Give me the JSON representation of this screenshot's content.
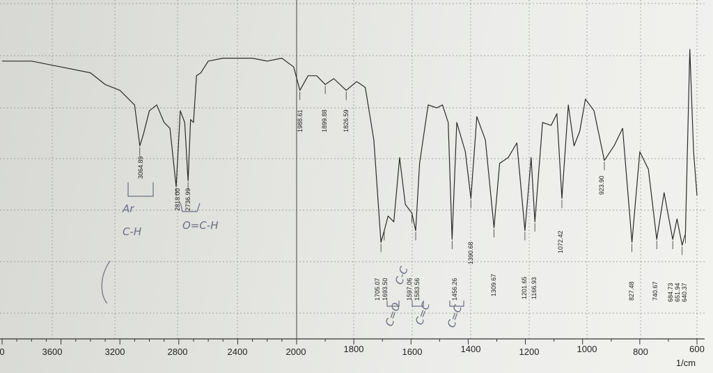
{
  "chart_data": {
    "type": "line",
    "title": "",
    "xlabel": "1/cm",
    "ylabel": "",
    "xlim": [
      4000,
      600
    ],
    "x_ticks": [
      "3600",
      "3200",
      "2800",
      "2400",
      "2000",
      "1600",
      "1200",
      "800",
      "600",
      "1800",
      "1400",
      "1000",
      "0"
    ],
    "peak_labels": [
      "3064.89",
      "2818.00",
      "2736.99",
      "1988.61",
      "1899.88",
      "1826.59",
      "1705.07",
      "1693.50",
      "1597.06",
      "1583.56",
      "1456.26",
      "1390.68",
      "1309.67",
      "1201.65",
      "1166.93",
      "1072.42",
      "923.90",
      "827.48",
      "740.67",
      "684.73",
      "651.94",
      "640.37"
    ],
    "annotations": [
      "Ar",
      "C-H",
      "O=C-H",
      "C=O",
      "C=C",
      "C=C",
      "C-C"
    ],
    "series": [
      {
        "x": [
          4000,
          3800,
          3600,
          3400,
          3300,
          3200,
          3100,
          3064.89,
          3040,
          3000,
          2950,
          2900,
          2860,
          2818,
          2790,
          2760,
          2736.99,
          2720,
          2700,
          2680,
          2650,
          2600,
          2500,
          2400,
          2300,
          2200,
          2100,
          2020,
          1988.61,
          1960,
          1930,
          1899.88,
          1870,
          1826.59,
          1790,
          1760,
          1730,
          1705.07,
          1693.5,
          1680,
          1660,
          1640,
          1620,
          1597.06,
          1583.56,
          1570,
          1540,
          1510,
          1490,
          1470,
          1456.26,
          1440,
          1410,
          1390.68,
          1370,
          1340,
          1309.67,
          1290,
          1260,
          1230,
          1201.65,
          1180,
          1166.93,
          1140,
          1110,
          1090,
          1072.42,
          1050,
          1030,
          1010,
          990,
          960,
          923.9,
          890,
          860,
          827.48,
          800,
          770,
          740.67,
          715,
          700,
          684.73,
          670,
          651.94,
          640.37,
          625,
          612,
          600
        ],
        "y": [
          91,
          91,
          89,
          87,
          83,
          81,
          76,
          62,
          66,
          74,
          76,
          70,
          68,
          48,
          74,
          70,
          50,
          71,
          70,
          86,
          87,
          91,
          92,
          92,
          92,
          91,
          92,
          89,
          81,
          86,
          86,
          83,
          85,
          81,
          84,
          82,
          64,
          29,
          33,
          38,
          36,
          58,
          42,
          39,
          33,
          56,
          76,
          75,
          76,
          70,
          30,
          70,
          60,
          44,
          72,
          64,
          34,
          56,
          58,
          63,
          33,
          58,
          36,
          70,
          69,
          73,
          44,
          76,
          62,
          67,
          78,
          74,
          57,
          62,
          68,
          29,
          60,
          54,
          30,
          46,
          38,
          30,
          37,
          28,
          32,
          95,
          60,
          45
        ]
      }
    ]
  }
}
